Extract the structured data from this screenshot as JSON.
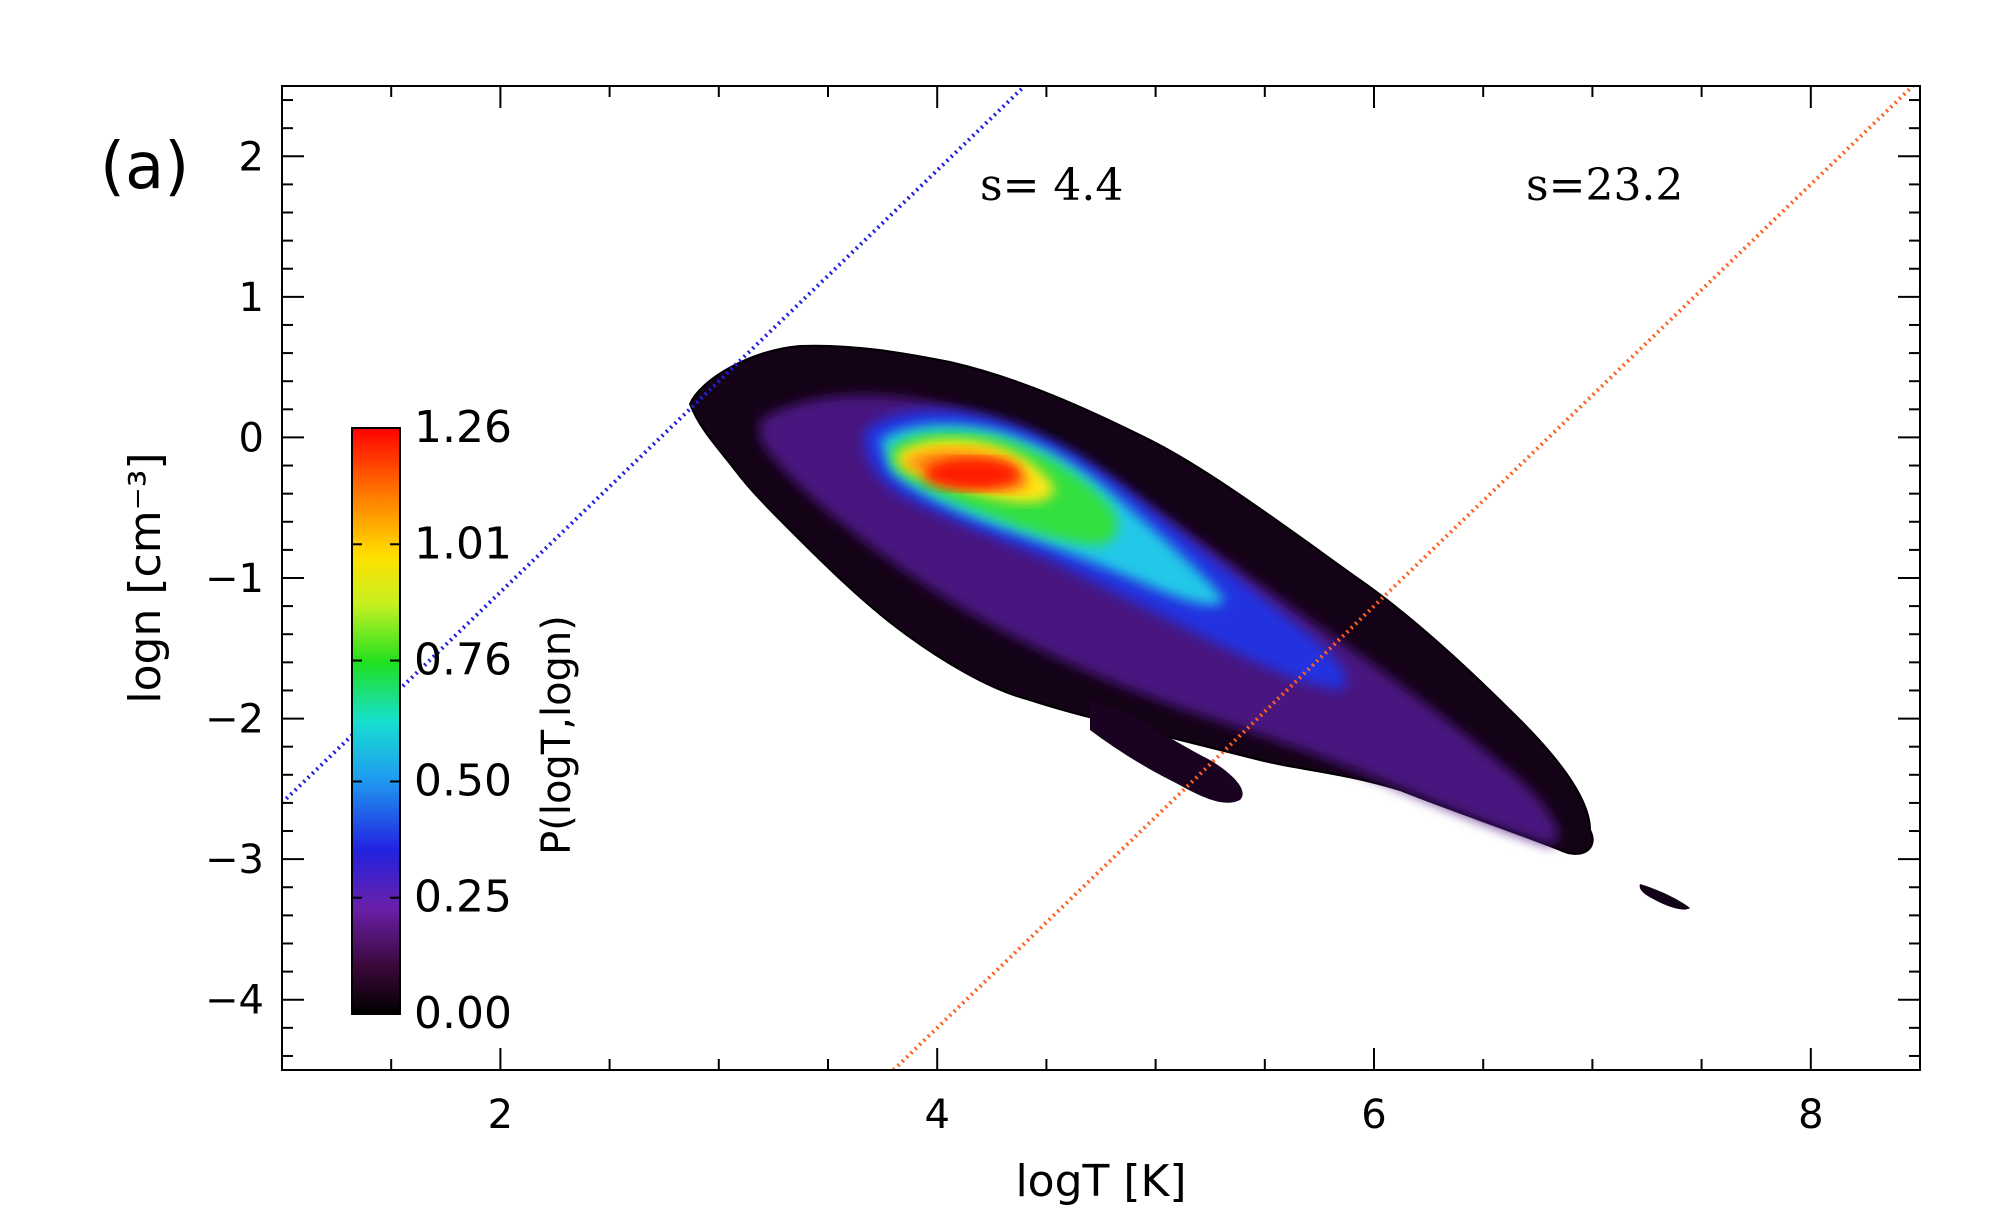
{
  "figure": {
    "panel_label": "(a)",
    "annotations": [
      {
        "text": "s=  4.4"
      },
      {
        "text": "s=23.2"
      }
    ]
  },
  "chart_data": {
    "type": "heatmap",
    "title": "",
    "xlabel": "logT [K]",
    "ylabel": "logn [cm⁻³]",
    "xlim": [
      1.0,
      8.5
    ],
    "ylim": [
      -4.5,
      2.5
    ],
    "xticks": [
      2,
      4,
      6,
      8
    ],
    "xtick_labels": [
      "2",
      "4",
      "6",
      "8"
    ],
    "yticks": [
      -4,
      -3,
      -2,
      -1,
      0,
      1,
      2
    ],
    "ytick_labels": [
      "−4",
      "−3",
      "−2",
      "−1",
      "0",
      "1",
      "2"
    ],
    "grid": false,
    "colormap": "rainbow (black-purple-blue-cyan-green-yellow-orange-red)",
    "colorbar": {
      "label": "P(logT,logn)",
      "range": [
        0.0,
        1.26
      ],
      "ticks": [
        0.0,
        0.25,
        0.5,
        0.76,
        1.01,
        1.26
      ],
      "tick_labels": [
        "0.00",
        "0.25",
        "0.50",
        "0.76",
        "1.01",
        "1.26"
      ]
    },
    "distribution_features": [
      {
        "name": "main body",
        "description": "broad PDF from logT~2.9, logn~0.3 down to logT~7.0, logn~-3.0"
      },
      {
        "name": "peak",
        "logT": 4.15,
        "logn": -0.32,
        "value": 1.26
      },
      {
        "name": "secondary ridge",
        "from": {
          "logT": 4.6,
          "logn": -0.9
        },
        "to": {
          "logT": 5.3,
          "logn": -1.4
        }
      },
      {
        "name": "lower tail",
        "from": {
          "logT": 5.0,
          "logn": -2.4
        },
        "to": {
          "logT": 5.4,
          "logn": -2.7
        }
      },
      {
        "name": "outlier streak",
        "from": {
          "logT": 7.1,
          "logn": -3.2
        },
        "to": {
          "logT": 7.4,
          "logn": -3.35
        }
      }
    ],
    "isentropes": [
      {
        "label": "s=  4.4",
        "color": "#2020e0",
        "style": "dotted",
        "slope": 1.5,
        "points": [
          [
            1.0,
            -2.6
          ],
          [
            4.4,
            2.5
          ]
        ]
      },
      {
        "label": "s=23.2",
        "color": "#ff6020",
        "style": "dotted",
        "slope": 1.5,
        "points": [
          [
            3.8,
            -4.5
          ],
          [
            8.5,
            2.55
          ]
        ]
      }
    ]
  }
}
